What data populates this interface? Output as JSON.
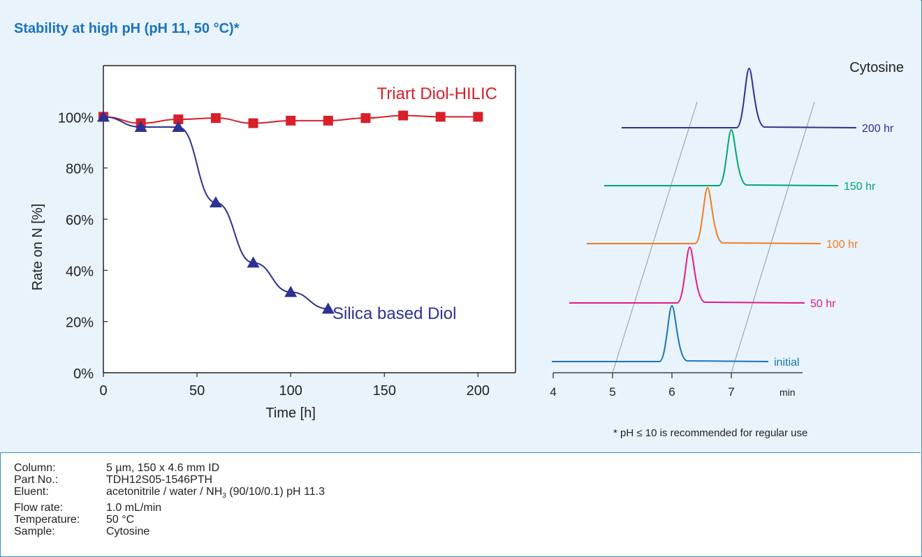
{
  "title": "Stability at high pH (pH 11, 50 °C)*",
  "chart_data": [
    {
      "type": "line",
      "title": "",
      "xlabel": "Time [h]",
      "ylabel": "Rate on N [%]",
      "xlim": [
        0,
        220
      ],
      "ylim": [
        0,
        120
      ],
      "x_ticks": [
        "0",
        "50",
        "100",
        "150",
        "200"
      ],
      "y_ticks": [
        "0%",
        "20%",
        "40%",
        "60%",
        "80%",
        "100%"
      ],
      "grid": false,
      "series": [
        {
          "name": "Triart Diol-HILIC",
          "color": "#d7202a",
          "marker": "square",
          "x": [
            0,
            20,
            40,
            60,
            80,
            100,
            120,
            140,
            160,
            180,
            200
          ],
          "y": [
            100,
            97.5,
            99,
            99.5,
            97.5,
            98.5,
            98.5,
            99.5,
            100.5,
            100,
            100
          ]
        },
        {
          "name": "Silica based Diol",
          "color": "#2e3192",
          "marker": "triangle",
          "x": [
            0,
            20,
            40,
            60,
            80,
            100,
            120
          ],
          "y": [
            100,
            96,
            96,
            66.5,
            43,
            31.5,
            25
          ]
        }
      ]
    },
    {
      "type": "line",
      "title": "Cytosine",
      "xlabel": "min",
      "x_ticks": [
        "4",
        "5",
        "6",
        "7"
      ],
      "xlim": [
        4,
        8.3
      ],
      "traces": [
        {
          "label": "initial",
          "color": "#1b75bb",
          "peak": 6.0
        },
        {
          "label": "50 hr",
          "color": "#e5198a",
          "peak": 6.3
        },
        {
          "label": "100 hr",
          "color": "#f47b20",
          "peak": 6.6
        },
        {
          "label": "150 hr",
          "color": "#00a76f",
          "peak": 7.0
        },
        {
          "label": "200 hr",
          "color": "#2e3192",
          "peak": 7.3
        }
      ]
    }
  ],
  "footnote": "* pH ≤ 10 is recommended for regular use",
  "conditions": [
    {
      "key": "Column:",
      "value": "5 µm, 150 x 4.6 mm ID"
    },
    {
      "key": "Part No.:",
      "value": "TDH12S05-1546PTH"
    },
    {
      "key": "Eluent:",
      "value_pre": "acetonitrile / water / NH",
      "value_sub": "3",
      "value_post": " (90/10/0.1) pH 11.3"
    },
    {
      "key": "Flow rate:",
      "value": "1.0 mL/min"
    },
    {
      "key": "Temperature:",
      "value": "50 °C"
    },
    {
      "key": "Sample:",
      "value": "Cytosine"
    }
  ]
}
